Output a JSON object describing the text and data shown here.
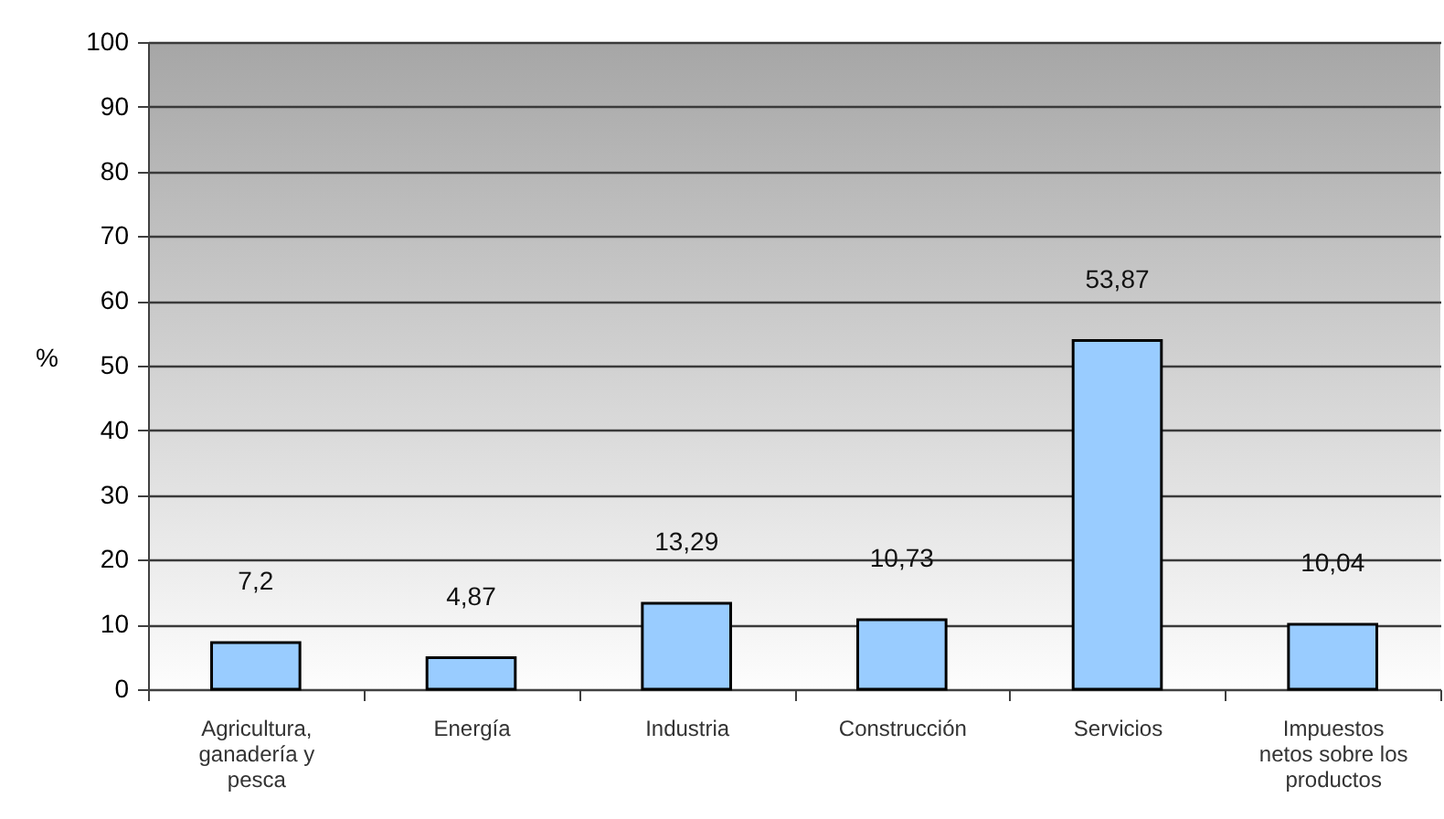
{
  "chart_data": {
    "type": "bar",
    "categories": [
      "Agricultura, ganadería y pesca",
      "Energía",
      "Industria",
      "Construcción",
      "Servicios",
      "Impuestos netos sobre los productos"
    ],
    "values": [
      7.2,
      4.87,
      13.29,
      10.73,
      53.87,
      10.04
    ],
    "value_labels": [
      "7,2",
      "4,87",
      "13,29",
      "10,73",
      "53,87",
      "10,04"
    ],
    "color": "#99ccff",
    "ylabel": "%",
    "ylim": [
      0,
      100
    ],
    "yticks": [
      0,
      10,
      20,
      30,
      40,
      50,
      60,
      70,
      80,
      90,
      100
    ],
    "grid": "y"
  }
}
